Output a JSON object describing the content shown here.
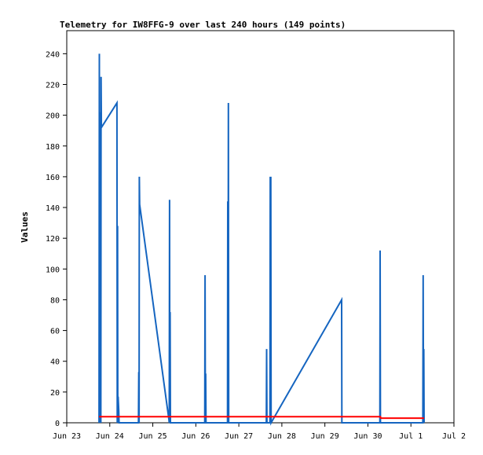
{
  "chart_data": {
    "type": "line",
    "title": "Telemetry for IW8FFG-9 over last 240 hours (149 points)",
    "xlabel": "",
    "ylabel": "Values",
    "x_ticks": [
      "Jun 23",
      "Jun 24",
      "Jun 25",
      "Jun 26",
      "Jun 27",
      "Jun 28",
      "Jun 29",
      "Jun 30",
      "Jul 1",
      "Jul 2"
    ],
    "y_ticks": [
      "0",
      "20",
      "40",
      "60",
      "80",
      "100",
      "120",
      "140",
      "160",
      "180",
      "200",
      "220",
      "240"
    ],
    "xlim": [
      "Jun 23",
      "Jul 2"
    ],
    "ylim": [
      0,
      255
    ],
    "grid": false,
    "legend": "none",
    "series": [
      {
        "color": "#1565c0",
        "points": [
          [
            "Jun 23 18:00",
            0
          ],
          [
            "Jun 23 18:10",
            240
          ],
          [
            "Jun 23 18:20",
            0
          ],
          [
            "Jun 23 18:30",
            202
          ],
          [
            "Jun 23 18:40",
            55
          ],
          [
            "Jun 23 18:50",
            128
          ],
          [
            "Jun 23 19:00",
            0
          ],
          [
            "Jun 23 19:10",
            225
          ],
          [
            "Jun 23 19:20",
            192
          ],
          [
            "Jun 24 04:00",
            208
          ],
          [
            "Jun 24 04:10",
            0
          ],
          [
            "Jun 24 04:20",
            128
          ],
          [
            "Jun 24 04:30",
            0
          ],
          [
            "Jun 24 04:40",
            17
          ],
          [
            "Jun 24 05:00",
            8
          ],
          [
            "Jun 24 05:10",
            0
          ],
          [
            "Jun 24 16:00",
            0
          ],
          [
            "Jun 24 16:10",
            33
          ],
          [
            "Jun 24 16:20",
            0
          ],
          [
            "Jun 24 16:30",
            160
          ],
          [
            "Jun 24 16:40",
            142
          ],
          [
            "Jun 25 09:00",
            2
          ],
          [
            "Jun 25 09:10",
            0
          ],
          [
            "Jun 25 09:20",
            145
          ],
          [
            "Jun 25 09:30",
            0
          ],
          [
            "Jun 25 09:40",
            72
          ],
          [
            "Jun 25 09:50",
            0
          ],
          [
            "Jun 26 05:00",
            0
          ],
          [
            "Jun 26 05:10",
            96
          ],
          [
            "Jun 26 05:20",
            0
          ],
          [
            "Jun 26 05:30",
            32
          ],
          [
            "Jun 26 05:40",
            0
          ],
          [
            "Jun 26 17:40",
            0
          ],
          [
            "Jun 26 17:50",
            144
          ],
          [
            "Jun 26 18:00",
            0
          ],
          [
            "Jun 26 18:10",
            208
          ],
          [
            "Jun 26 18:20",
            0
          ],
          [
            "Jun 27 15:20",
            0
          ],
          [
            "Jun 27 15:30",
            48
          ],
          [
            "Jun 27 15:40",
            0
          ],
          [
            "Jun 27 17:20",
            0
          ],
          [
            "Jun 27 17:30",
            160
          ],
          [
            "Jun 27 17:40",
            0
          ],
          [
            "Jun 27 17:50",
            160
          ],
          [
            "Jun 27 18:00",
            0
          ],
          [
            "Jun 29 09:20",
            80
          ],
          [
            "Jun 29 09:30",
            0
          ],
          [
            "Jun 30 06:40",
            0
          ],
          [
            "Jun 30 06:50",
            112
          ],
          [
            "Jun 30 07:00",
            0
          ],
          [
            "Jul 1 06:40",
            0
          ],
          [
            "Jul 1 06:50",
            96
          ],
          [
            "Jul 1 07:00",
            0
          ],
          [
            "Jul 1 07:10",
            48
          ],
          [
            "Jul 1 07:20",
            0
          ]
        ]
      },
      {
        "color": "#ff0000",
        "points": [
          [
            "Jun 23 18:00",
            4
          ],
          [
            "Jun 24 12:00",
            4
          ],
          [
            "Jun 25 12:00",
            4
          ],
          [
            "Jun 26 12:00",
            4
          ],
          [
            "Jun 27 12:00",
            4
          ],
          [
            "Jun 28 12:00",
            4
          ],
          [
            "Jun 29 12:00",
            4
          ],
          [
            "Jun 30 07:00",
            4
          ],
          [
            "Jun 30 07:10",
            3
          ],
          [
            "Jul 1 07:20",
            3
          ]
        ]
      }
    ]
  }
}
